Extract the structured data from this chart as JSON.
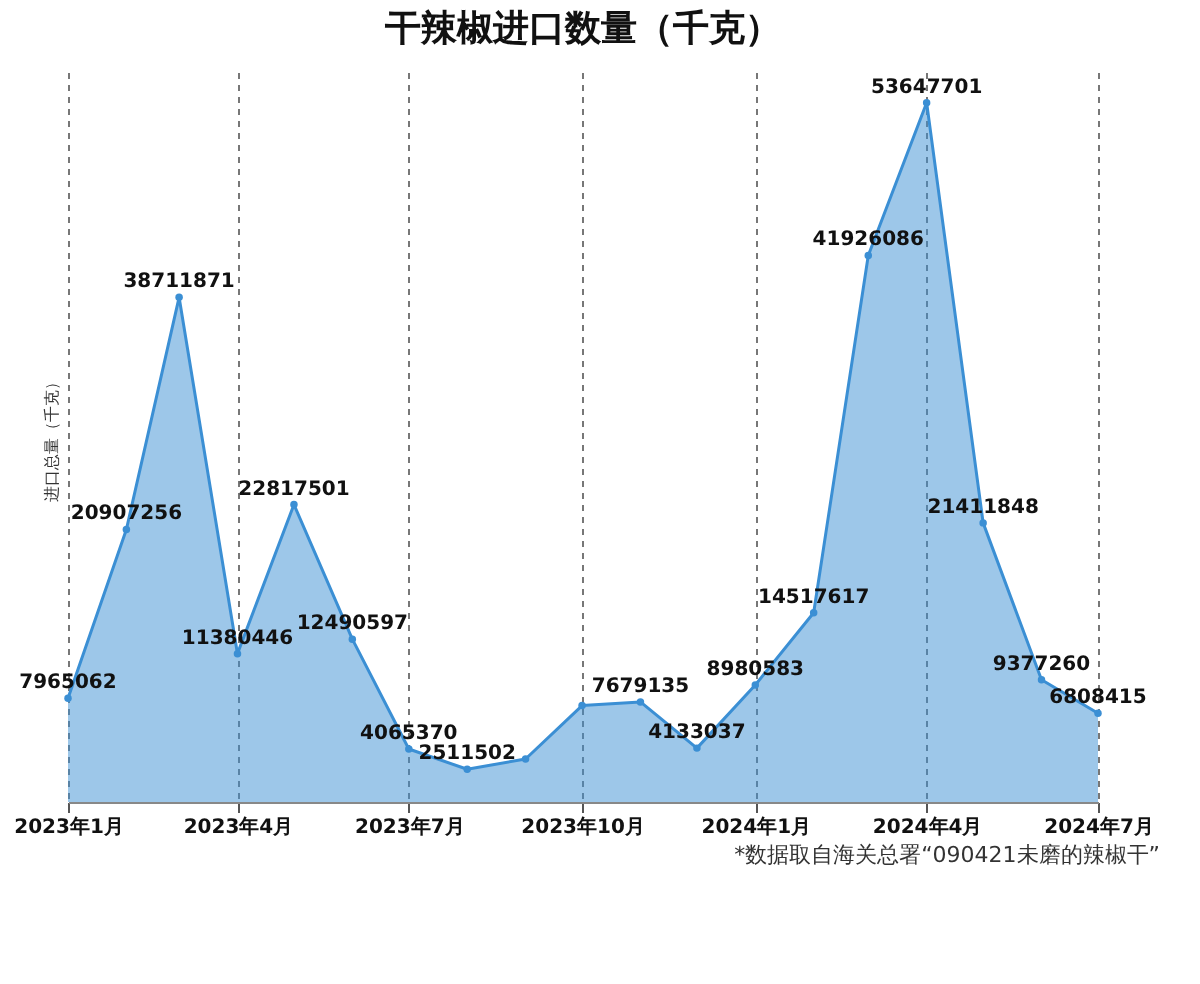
{
  "chart_data": {
    "type": "area",
    "title": "干辣椒进口数量（千克）",
    "ylabel": "进口总量（千克）",
    "x": [
      "2023-01",
      "2023-02",
      "2023-03",
      "2023-04",
      "2023-05",
      "2023-06",
      "2023-07",
      "2023-08",
      "2023-09",
      "2023-10",
      "2023-11",
      "2023-12",
      "2024-01",
      "2024-02",
      "2024-03",
      "2024-04",
      "2024-05",
      "2024-06",
      "2024-07"
    ],
    "series": [
      {
        "color": "#3b8fd4",
        "values": [
          7965062,
          20907256,
          38711871,
          11380446,
          22817501,
          12490597,
          4065370,
          2511502,
          3300000,
          7400000,
          7679135,
          4133037,
          8980583,
          14517617,
          41926086,
          53647701,
          21411848,
          9377260,
          6808415
        ],
        "value_labels": [
          "7965062",
          "20907256",
          "38711871",
          "11380446",
          "22817501",
          "12490597",
          "4065370",
          "2511502",
          null,
          null,
          "7679135",
          "4133037",
          "8980583",
          "14517617",
          "41926086",
          "53647701",
          "21411848",
          "9377260",
          "6808415"
        ]
      }
    ],
    "xlim": [
      "2023-01",
      "2024-07"
    ],
    "xticks": [
      {
        "value": "2023-01",
        "label": "2023年1月"
      },
      {
        "value": "2023-04",
        "label": "2023年4月"
      },
      {
        "value": "2023-07",
        "label": "2023年7月"
      },
      {
        "value": "2023-10",
        "label": "2023年10月"
      },
      {
        "value": "2024-01",
        "label": "2024年1月"
      },
      {
        "value": "2024-04",
        "label": "2024年4月"
      },
      {
        "value": "2024-07",
        "label": "2024年7月"
      }
    ],
    "ylim": [
      0,
      56000000
    ],
    "tick_labels": "x",
    "grid": "x",
    "marker": "circle",
    "annotations": [
      "*数据取自海关总署“090421未磨的辣椒干”"
    ]
  }
}
